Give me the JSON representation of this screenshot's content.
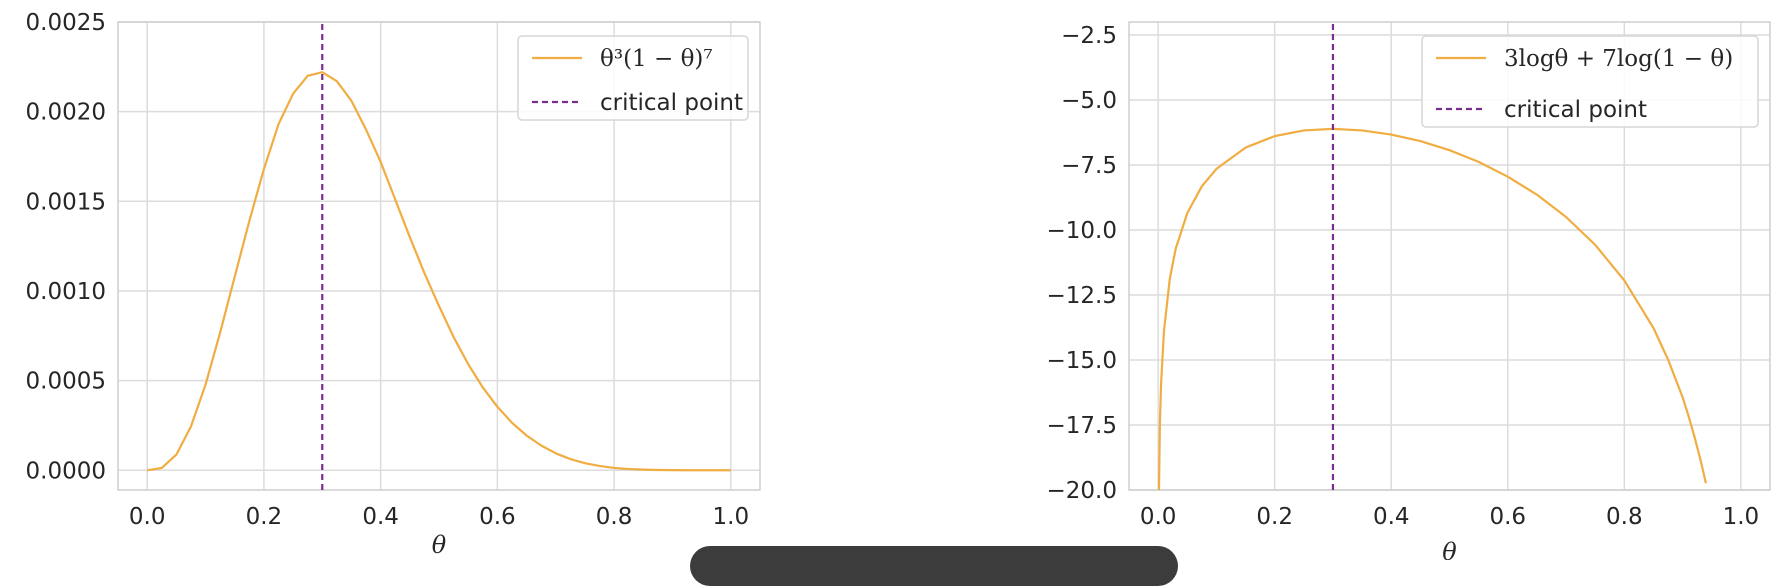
{
  "chart_data": [
    {
      "type": "line",
      "xlabel": "θ",
      "ylabel": "",
      "xlim": [
        -0.05,
        1.05
      ],
      "ylim": [
        -0.00011,
        0.0025
      ],
      "xticks": [
        "0.0",
        "0.2",
        "0.4",
        "0.6",
        "0.8",
        "1.0"
      ],
      "yticks": [
        "0.0000",
        "0.0005",
        "0.0010",
        "0.0015",
        "0.0020",
        "0.0025"
      ],
      "grid": true,
      "legend_position": "top-right",
      "series": [
        {
          "name": "θ³(1 − θ)⁷",
          "color": "#f0ad41",
          "style": "solid",
          "x": [
            0.0,
            0.025,
            0.05,
            0.075,
            0.1,
            0.125,
            0.15,
            0.175,
            0.2,
            0.225,
            0.25,
            0.275,
            0.3,
            0.325,
            0.35,
            0.375,
            0.4,
            0.425,
            0.45,
            0.475,
            0.5,
            0.525,
            0.55,
            0.575,
            0.6,
            0.625,
            0.65,
            0.675,
            0.7,
            0.725,
            0.75,
            0.775,
            0.8,
            0.825,
            0.85,
            0.875,
            0.9,
            0.925,
            0.95,
            0.975,
            1.0
          ],
          "y": [
            0.0,
            1.31e-05,
            8.73e-05,
            0.000244,
            0.000478,
            0.000768,
            0.00108,
            0.00139,
            0.00168,
            0.00193,
            0.0021,
            0.0022,
            0.00222,
            0.00217,
            0.00206,
            0.0019,
            0.00172,
            0.00151,
            0.0013,
            0.0011,
            0.000916,
            0.000743,
            0.000592,
            0.000462,
            0.000354,
            0.000265,
            0.000194,
            0.000138,
            9.45e-05,
            6.25e-05,
            3.97e-05,
            2.4e-05,
            1.31e-05,
            7.1e-06,
            3.7e-06,
            1.6e-06,
            7e-07,
            2e-07,
            5e-08,
            0.0,
            0.0
          ]
        },
        {
          "name": "critical point",
          "color": "#7b2c8f",
          "style": "dashed",
          "x": [
            0.3,
            0.3
          ],
          "y": [
            -0.00011,
            0.0025
          ]
        }
      ]
    },
    {
      "type": "line",
      "xlabel": "θ",
      "ylabel": "",
      "xlim": [
        -0.05,
        1.05
      ],
      "ylim": [
        -20.0,
        -2.0
      ],
      "xticks": [
        "0.0",
        "0.2",
        "0.4",
        "0.6",
        "0.8",
        "1.0"
      ],
      "yticks": [
        "−20.0",
        "−17.5",
        "−15.0",
        "−12.5",
        "−10.0",
        "−7.5",
        "−5.0",
        "−2.5"
      ],
      "grid": true,
      "legend_position": "top-right",
      "series": [
        {
          "name": "3logθ + 7log(1 − θ)",
          "color": "#f0ad41",
          "style": "solid",
          "x": [
            0.001,
            0.003,
            0.005,
            0.01,
            0.02,
            0.03,
            0.05,
            0.075,
            0.1,
            0.15,
            0.2,
            0.25,
            0.3,
            0.35,
            0.4,
            0.45,
            0.5,
            0.55,
            0.6,
            0.65,
            0.7,
            0.75,
            0.8,
            0.85,
            0.875,
            0.9,
            0.91,
            0.92,
            0.93,
            0.935,
            0.94
          ],
          "y": [
            -20.73,
            -17.45,
            -15.93,
            -13.89,
            -11.88,
            -10.73,
            -9.35,
            -8.32,
            -7.65,
            -6.83,
            -6.39,
            -6.17,
            -6.11,
            -6.17,
            -6.33,
            -6.58,
            -6.93,
            -7.38,
            -7.95,
            -8.64,
            -9.5,
            -10.57,
            -11.94,
            -13.77,
            -14.98,
            -16.43,
            -17.14,
            -17.92,
            -18.78,
            -19.25,
            -19.74
          ]
        },
        {
          "name": "critical point",
          "color": "#7b2c8f",
          "style": "dashed",
          "x": [
            0.3,
            0.3
          ],
          "y": [
            -20.0,
            -2.0
          ]
        }
      ]
    }
  ]
}
